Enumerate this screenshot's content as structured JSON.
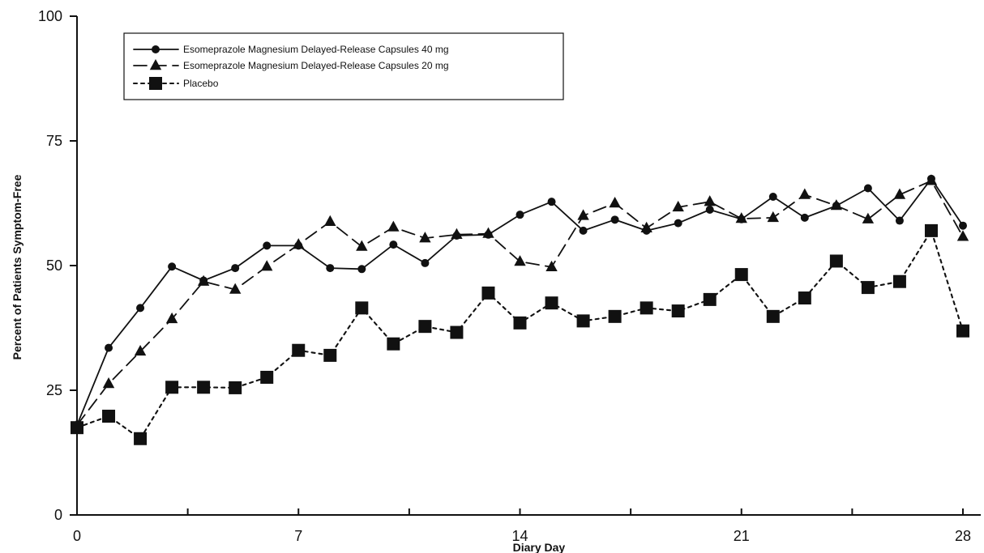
{
  "chart_data": {
    "type": "line",
    "xlabel": "Diary Day",
    "ylabel": "Percent of Patients Symptom-Free",
    "xlim": [
      0,
      28
    ],
    "ylim": [
      0,
      100
    ],
    "x_ticks": [
      0,
      7,
      14,
      21,
      28
    ],
    "x_minor_ticks": [
      3.5,
      10.5,
      17.5,
      24.5
    ],
    "x_tick_labels": [
      "0",
      "7",
      "14",
      "21",
      "28"
    ],
    "y_ticks": [
      0,
      25,
      50,
      75,
      100
    ],
    "y_tick_labels": [
      "0",
      "25",
      "50",
      "75",
      "100"
    ],
    "legend_position": "top-left",
    "series": [
      {
        "name": "Esomeprazole Magnesium Delayed-Release Capsules 40 mg",
        "marker": "circle",
        "line_style": "solid",
        "color": "#111111",
        "x": [
          0,
          1,
          2,
          3,
          4,
          5,
          6,
          7,
          8,
          9,
          10,
          11,
          12,
          13,
          14,
          15,
          16,
          17,
          18,
          19,
          20,
          21,
          22,
          23,
          24,
          25,
          26,
          27,
          28
        ],
        "values": [
          18,
          33.5,
          41.5,
          49.8,
          47,
          49.5,
          54,
          54,
          49.5,
          49.3,
          54.2,
          50.5,
          56,
          56.2,
          60.2,
          62.8,
          57,
          59.2,
          57,
          58.5,
          61.2,
          59.3,
          63.8,
          59.6,
          62,
          65.5,
          59,
          67.4,
          58
        ]
      },
      {
        "name": "Esomeprazole Magnesium Delayed-Release Capsules 20 mg",
        "marker": "triangle",
        "line_style": "dashed",
        "color": "#111111",
        "x": [
          0,
          1,
          2,
          3,
          4,
          5,
          6,
          7,
          8,
          9,
          10,
          11,
          12,
          13,
          14,
          15,
          16,
          17,
          18,
          19,
          20,
          21,
          22,
          23,
          24,
          25,
          26,
          27,
          28
        ],
        "values": [
          18,
          26.3,
          32.8,
          39.3,
          46.8,
          45.2,
          49.8,
          54.2,
          58.8,
          53.8,
          57.7,
          55.5,
          56.2,
          56.4,
          50.8,
          49.7,
          60,
          62.5,
          57.5,
          61.7,
          62.8,
          59.4,
          59.6,
          64.2,
          62,
          59.3,
          64.2,
          67,
          55.8
        ]
      },
      {
        "name": "Placebo",
        "marker": "square",
        "line_style": "dotted",
        "color": "#111111",
        "x": [
          0,
          1,
          2,
          3,
          4,
          5,
          6,
          7,
          8,
          9,
          10,
          11,
          12,
          13,
          14,
          15,
          16,
          17,
          18,
          19,
          20,
          21,
          22,
          23,
          24,
          25,
          26,
          27,
          28
        ],
        "values": [
          17.5,
          19.8,
          15.3,
          25.6,
          25.6,
          25.5,
          27.6,
          33,
          32,
          41.5,
          34.3,
          37.8,
          36.6,
          44.5,
          38.5,
          42.5,
          38.9,
          39.8,
          41.5,
          40.9,
          43.2,
          48.2,
          39.8,
          43.5,
          50.9,
          45.6,
          46.8,
          57,
          36.9
        ]
      }
    ]
  }
}
